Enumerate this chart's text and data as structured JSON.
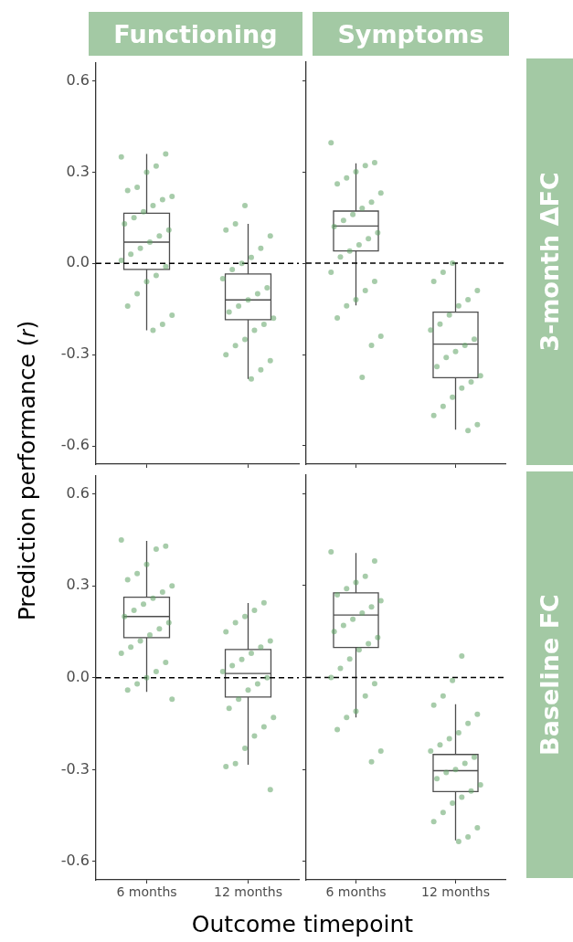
{
  "chart_data": [
    {
      "type": "box",
      "title": "Functioning",
      "ylabel": "Prediction performance (𝑟)",
      "categories": [
        "6 months",
        "12 months"
      ],
      "ylim": [
        -0.66,
        0.66
      ],
      "yticks": [
        -0.6,
        -0.3,
        {
          "value": 0,
          "label": "0.0"
        },
        0.3,
        0.6
      ],
      "tick_labels": "y",
      "marker": "circle",
      "ref_lines": [
        {
          "axis": "y",
          "value": 0,
          "color": "#000000",
          "line_style": "dashed"
        }
      ],
      "series": [
        {
          "type": "box",
          "color": "#4d4d4d",
          "boxes": [
            {
              "low": -0.22,
              "q1": -0.02,
              "median": 0.07,
              "q3": 0.165,
              "high": 0.36
            },
            {
              "low": -0.38,
              "q1": -0.185,
              "median": -0.12,
              "q3": -0.035,
              "high": 0.13
            }
          ]
        },
        {
          "type": "scatter",
          "color": "#5fa265",
          "x": [
            "6 months",
            "6 months",
            "6 months",
            "6 months",
            "6 months",
            "6 months",
            "6 months",
            "6 months",
            "6 months",
            "6 months",
            "6 months",
            "6 months",
            "6 months",
            "6 months",
            "6 months",
            "6 months",
            "6 months",
            "6 months",
            "6 months",
            "6 months",
            "6 months",
            "6 months",
            "6 months",
            "6 months",
            "6 months",
            "6 months",
            "12 months",
            "12 months",
            "12 months",
            "12 months",
            "12 months",
            "12 months",
            "12 months",
            "12 months",
            "12 months",
            "12 months",
            "12 months",
            "12 months",
            "12 months",
            "12 months",
            "12 months",
            "12 months",
            "12 months",
            "12 months",
            "12 months",
            "12 months",
            "12 months",
            "12 months",
            "12 months"
          ],
          "values": [
            0.35,
            0.36,
            0.32,
            0.3,
            0.25,
            0.24,
            0.22,
            0.21,
            0.19,
            0.17,
            0.15,
            0.13,
            0.11,
            0.09,
            0.07,
            0.05,
            0.03,
            0.01,
            -0.01,
            -0.04,
            -0.06,
            -0.1,
            -0.14,
            -0.17,
            -0.2,
            -0.22,
            0.19,
            0.13,
            0.11,
            0.09,
            0.05,
            0.02,
            0.0,
            -0.02,
            -0.05,
            -0.08,
            -0.1,
            -0.12,
            -0.14,
            -0.16,
            -0.18,
            -0.2,
            -0.22,
            -0.25,
            -0.27,
            -0.3,
            -0.32,
            -0.35,
            -0.38
          ]
        }
      ]
    },
    {
      "type": "box",
      "title": "Symptoms",
      "annotations": [
        "3-month ΔFC"
      ],
      "categories": [
        "6 months",
        "12 months"
      ],
      "ylim": [
        -0.66,
        0.66
      ],
      "yticks": [
        -0.6,
        -0.3,
        0,
        0.3,
        0.6
      ],
      "tick_labels": false,
      "marker": "circle",
      "ref_lines": [
        {
          "axis": "y",
          "value": 0,
          "color": "#000000",
          "line_style": "dashed"
        }
      ],
      "series": [
        {
          "type": "box",
          "color": "#4d4d4d",
          "boxes": [
            {
              "low": -0.139,
              "q1": 0.04,
              "median": 0.122,
              "q3": 0.171,
              "high": 0.328
            },
            {
              "low": -0.547,
              "q1": -0.376,
              "median": -0.266,
              "q3": -0.161,
              "high": 0.0
            }
          ]
        },
        {
          "type": "scatter",
          "color": "#5fa265",
          "x": [
            "6 months",
            "6 months",
            "6 months",
            "6 months",
            "6 months",
            "6 months",
            "6 months",
            "6 months",
            "6 months",
            "6 months",
            "6 months",
            "6 months",
            "6 months",
            "6 months",
            "6 months",
            "6 months",
            "6 months",
            "6 months",
            "6 months",
            "6 months",
            "6 months",
            "6 months",
            "6 months",
            "6 months",
            "6 months",
            "6 months",
            "12 months",
            "12 months",
            "12 months",
            "12 months",
            "12 months",
            "12 months",
            "12 months",
            "12 months",
            "12 months",
            "12 months",
            "12 months",
            "12 months",
            "12 months",
            "12 months",
            "12 months",
            "12 months",
            "12 months",
            "12 months",
            "12 months",
            "12 months",
            "12 months",
            "12 months"
          ],
          "values": [
            0.395,
            0.33,
            0.32,
            0.3,
            0.28,
            0.26,
            0.23,
            0.2,
            0.18,
            0.16,
            0.14,
            0.12,
            0.1,
            0.08,
            0.06,
            0.04,
            0.02,
            -0.03,
            -0.06,
            -0.09,
            -0.12,
            -0.14,
            -0.18,
            -0.24,
            -0.27,
            -0.375,
            0.0,
            -0.03,
            -0.06,
            -0.09,
            -0.12,
            -0.14,
            -0.17,
            -0.2,
            -0.22,
            -0.25,
            -0.27,
            -0.29,
            -0.31,
            -0.34,
            -0.37,
            -0.39,
            -0.41,
            -0.44,
            -0.47,
            -0.5,
            -0.53,
            -0.55
          ]
        }
      ]
    },
    {
      "type": "box",
      "xlabel": "Outcome timepoint",
      "categories": [
        "6 months",
        "12 months"
      ],
      "ylim": [
        -0.66,
        0.66
      ],
      "yticks": [
        -0.6,
        -0.3,
        {
          "value": 0,
          "label": "0.0"
        },
        0.3,
        0.6
      ],
      "marker": "circle",
      "ref_lines": [
        {
          "axis": "y",
          "value": 0,
          "color": "#000000",
          "line_style": "dashed"
        }
      ],
      "series": [
        {
          "type": "box",
          "color": "#4d4d4d",
          "boxes": [
            {
              "low": -0.046,
              "q1": 0.131,
              "median": 0.2,
              "q3": 0.263,
              "high": 0.447
            },
            {
              "low": -0.284,
              "q1": -0.063,
              "median": 0.014,
              "q3": 0.092,
              "high": 0.244
            }
          ]
        },
        {
          "type": "scatter",
          "color": "#5fa265",
          "x": [
            "6 months",
            "6 months",
            "6 months",
            "6 months",
            "6 months",
            "6 months",
            "6 months",
            "6 months",
            "6 months",
            "6 months",
            "6 months",
            "6 months",
            "6 months",
            "6 months",
            "6 months",
            "6 months",
            "6 months",
            "6 months",
            "6 months",
            "6 months",
            "6 months",
            "6 months",
            "6 months",
            "6 months",
            "12 months",
            "12 months",
            "12 months",
            "12 months",
            "12 months",
            "12 months",
            "12 months",
            "12 months",
            "12 months",
            "12 months",
            "12 months",
            "12 months",
            "12 months",
            "12 months",
            "12 months",
            "12 months",
            "12 months",
            "12 months",
            "12 months",
            "12 months",
            "12 months",
            "12 months",
            "12 months"
          ],
          "values": [
            0.45,
            0.43,
            0.42,
            0.37,
            0.34,
            0.32,
            0.3,
            0.28,
            0.26,
            0.24,
            0.22,
            0.2,
            0.18,
            0.16,
            0.14,
            0.12,
            0.1,
            0.08,
            0.05,
            0.02,
            0.0,
            -0.02,
            -0.04,
            -0.07,
            0.245,
            0.22,
            0.2,
            0.18,
            0.15,
            0.12,
            0.1,
            0.08,
            0.06,
            0.04,
            0.02,
            0.0,
            -0.02,
            -0.04,
            -0.07,
            -0.1,
            -0.13,
            -0.16,
            -0.19,
            -0.23,
            -0.28,
            -0.29,
            -0.365
          ]
        }
      ]
    },
    {
      "type": "box",
      "annotations": [
        "Baseline FC"
      ],
      "categories": [
        "6 months",
        "12 months"
      ],
      "ylim": [
        -0.66,
        0.66
      ],
      "yticks": [
        -0.6,
        -0.3,
        0,
        0.3,
        0.6
      ],
      "tick_labels": "x",
      "marker": "circle",
      "ref_lines": [
        {
          "axis": "y",
          "value": 0,
          "color": "#000000",
          "line_style": "dashed"
        }
      ],
      "series": [
        {
          "type": "box",
          "color": "#4d4d4d",
          "boxes": [
            {
              "low": -0.13,
              "q1": 0.098,
              "median": 0.204,
              "q3": 0.276,
              "high": 0.406
            },
            {
              "low": -0.531,
              "q1": -0.372,
              "median": -0.304,
              "q3": -0.251,
              "high": -0.087
            }
          ]
        },
        {
          "type": "scatter",
          "color": "#5fa265",
          "x": [
            "6 months",
            "6 months",
            "6 months",
            "6 months",
            "6 months",
            "6 months",
            "6 months",
            "6 months",
            "6 months",
            "6 months",
            "6 months",
            "6 months",
            "6 months",
            "6 months",
            "6 months",
            "6 months",
            "6 months",
            "6 months",
            "6 months",
            "6 months",
            "6 months",
            "6 months",
            "6 months",
            "6 months",
            "6 months",
            "12 months",
            "12 months",
            "12 months",
            "12 months",
            "12 months",
            "12 months",
            "12 months",
            "12 months",
            "12 months",
            "12 months",
            "12 months",
            "12 months",
            "12 months",
            "12 months",
            "12 months",
            "12 months",
            "12 months",
            "12 months",
            "12 months",
            "12 months",
            "12 months",
            "12 months",
            "12 months",
            "12 months"
          ],
          "values": [
            0.41,
            0.38,
            0.33,
            0.31,
            0.29,
            0.27,
            0.25,
            0.23,
            0.21,
            0.19,
            0.17,
            0.15,
            0.13,
            0.11,
            0.09,
            0.06,
            0.03,
            0.0,
            -0.02,
            -0.06,
            -0.11,
            -0.13,
            -0.17,
            -0.24,
            -0.275,
            0.07,
            -0.01,
            -0.06,
            -0.09,
            -0.12,
            -0.15,
            -0.18,
            -0.2,
            -0.22,
            -0.24,
            -0.26,
            -0.28,
            -0.3,
            -0.31,
            -0.33,
            -0.35,
            -0.37,
            -0.39,
            -0.41,
            -0.44,
            -0.47,
            -0.49,
            -0.52,
            -0.535
          ]
        }
      ]
    }
  ]
}
